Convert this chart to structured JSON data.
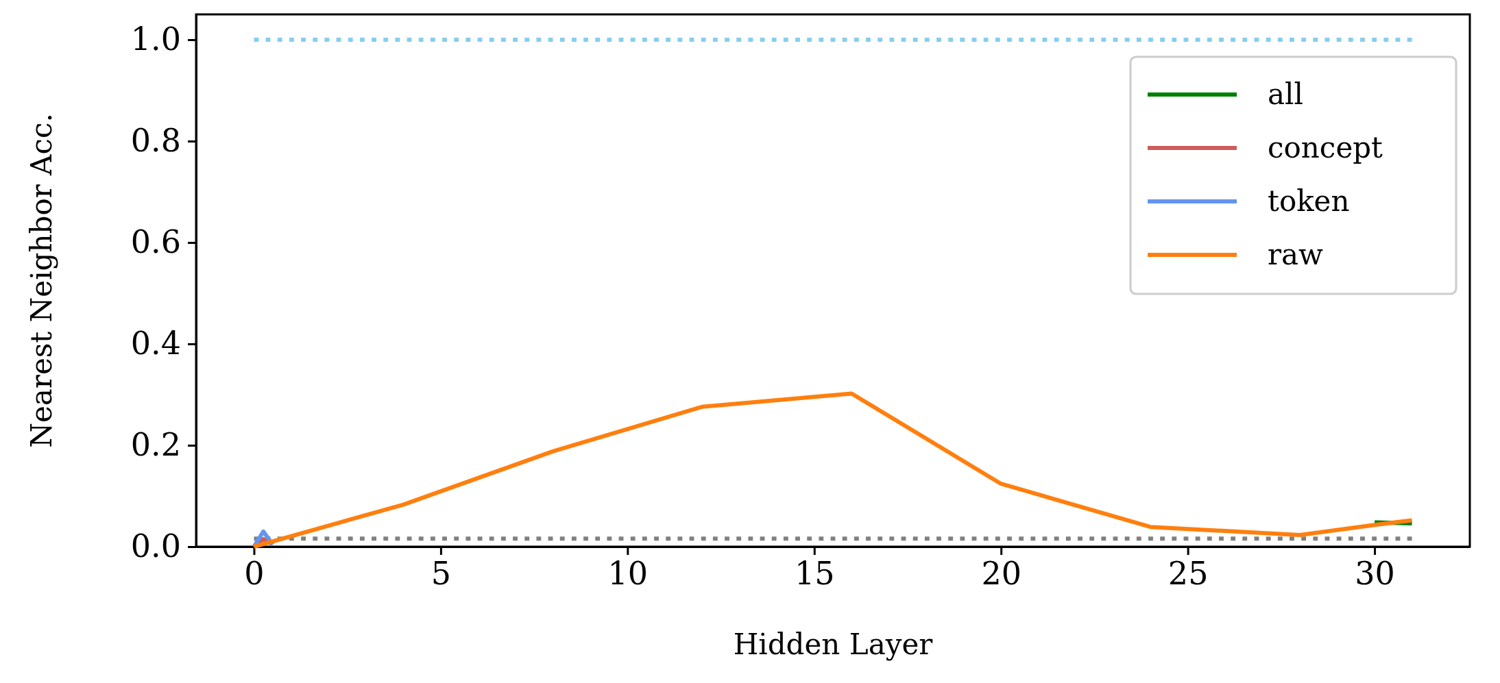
{
  "chart_data": {
    "type": "line",
    "xlabel": "Hidden Layer",
    "ylabel": "Nearest Neighbor Acc.",
    "xlim": [
      -1.55,
      32.55
    ],
    "ylim": [
      0,
      1.05
    ],
    "xticks": [
      0,
      5,
      10,
      15,
      20,
      25,
      30
    ],
    "yticks": [
      {
        "value": 0,
        "label": "0.0"
      },
      {
        "value": 0.2,
        "label": "0.2"
      },
      {
        "value": 0.4,
        "label": "0.4"
      },
      {
        "value": 0.6,
        "label": "0.6"
      },
      {
        "value": 0.8,
        "label": "0.8"
      },
      {
        "value": 1,
        "label": "1.0"
      }
    ],
    "grid": false,
    "legend": "top right",
    "line_style": "solid",
    "series": [
      {
        "color": "#87ceeb",
        "line_style": "dotted",
        "x": [
          0,
          31
        ],
        "values": [
          1,
          1
        ]
      },
      {
        "color": "#808080",
        "line_style": "dotted",
        "x": [
          0,
          31
        ],
        "values": [
          0.016,
          0.016
        ]
      },
      {
        "name": "all",
        "color": "#008000",
        "x": [
          30,
          31
        ],
        "values": [
          0.048,
          0.046
        ]
      },
      {
        "name": "concept",
        "color": "#cd5c5c",
        "x": [
          0,
          0.25,
          0.5
        ],
        "values": [
          0,
          0.015,
          0.004
        ]
      },
      {
        "name": "token",
        "color": "#6495ed",
        "x": [
          0,
          0.25,
          0.5
        ],
        "values": [
          0,
          0.03,
          0.004
        ]
      },
      {
        "name": "raw",
        "color": "#ff7f0e",
        "x": [
          0,
          4,
          8,
          12,
          16,
          20,
          24,
          28,
          30,
          31
        ],
        "values": [
          0,
          0.083,
          0.188,
          0.276,
          0.302,
          0.124,
          0.039,
          0.023,
          0.043,
          0.052
        ]
      }
    ]
  }
}
